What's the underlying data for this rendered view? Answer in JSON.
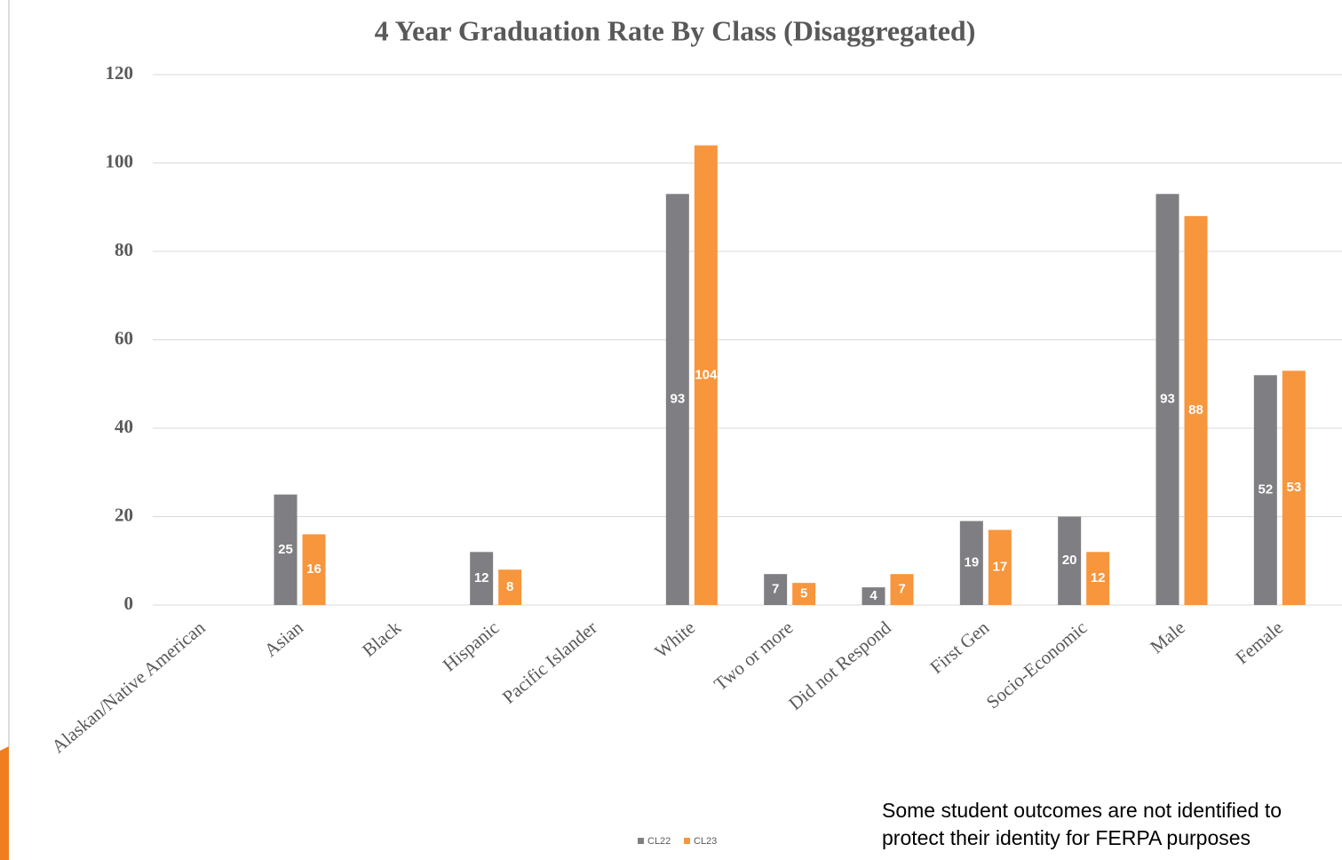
{
  "chart_data": {
    "type": "bar",
    "title": "4 Year Graduation Rate By Class (Disaggregated)",
    "categories": [
      "Alaskan/Native American",
      "Asian",
      "Black",
      "Hispanic",
      "Pacific Islander",
      "White",
      "Two or more",
      "Did not Respond",
      "First Gen",
      "Socio-Economic",
      "Male",
      "Female"
    ],
    "series": [
      {
        "name": "CL22",
        "color": "#7f7f83",
        "values": [
          null,
          25,
          null,
          12,
          null,
          93,
          7,
          4,
          19,
          20,
          93,
          52
        ]
      },
      {
        "name": "CL23",
        "color": "#f7963d",
        "values": [
          null,
          16,
          null,
          8,
          null,
          104,
          5,
          7,
          17,
          12,
          88,
          53
        ]
      }
    ],
    "ylim": [
      0,
      120
    ],
    "yticks": [
      0,
      20,
      40,
      60,
      80,
      100,
      120
    ],
    "grid": true,
    "legend": "bottom",
    "note": [
      "Some student outcomes are not identified to",
      "protect their identity for FERPA purposes"
    ]
  }
}
